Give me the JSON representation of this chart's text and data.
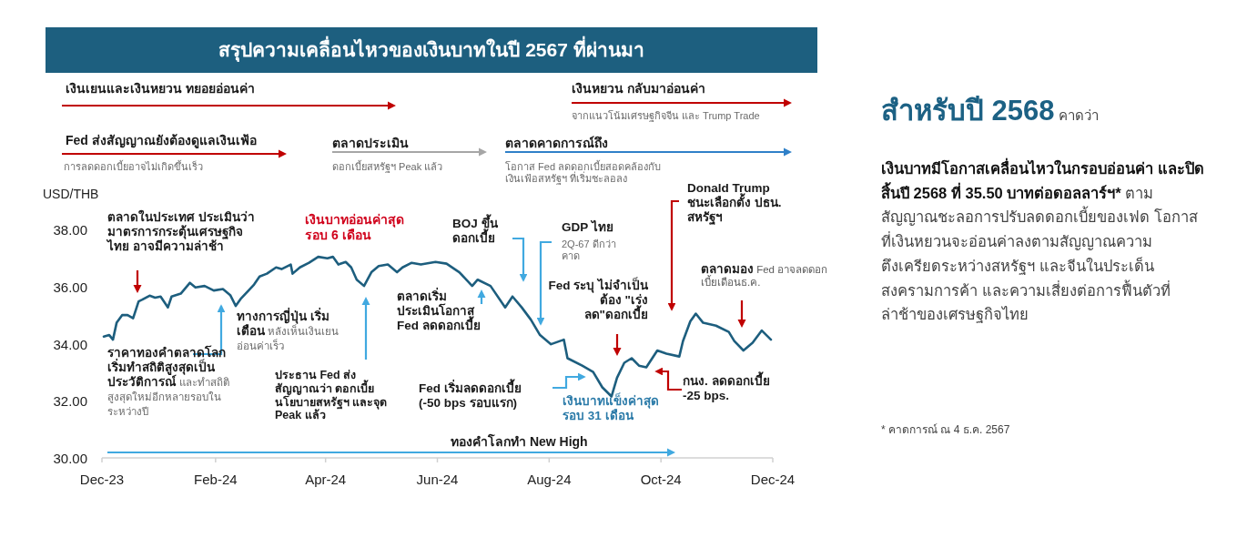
{
  "chart_data": {
    "type": "line",
    "title": "สรุปความเคลื่อนไหวของเงินบาทในปี 2567 ที่ผ่านมา",
    "ylabel": "USD/THB",
    "xlim": [
      "2023-12-01",
      "2024-12-01"
    ],
    "xticks": [
      {
        "value": "2023-12-01",
        "label": "Dec-23"
      },
      {
        "value": "2024-02-01",
        "label": "Feb-24"
      },
      {
        "value": "2024-04-01",
        "label": "Apr-24"
      },
      {
        "value": "2024-06-01",
        "label": "Jun-24"
      },
      {
        "value": "2024-08-01",
        "label": "Aug-24"
      },
      {
        "value": "2024-10-01",
        "label": "Oct-24"
      },
      {
        "value": "2024-12-01",
        "label": "Dec-24"
      }
    ],
    "ylim": [
      30,
      38
    ],
    "yticks": [
      {
        "value": 30,
        "label": "30.00"
      },
      {
        "value": 32,
        "label": "32.00"
      },
      {
        "value": 34,
        "label": "34.00"
      },
      {
        "value": 36,
        "label": "36.00"
      },
      {
        "value": 38,
        "label": "38.00"
      }
    ],
    "x": [
      "2023-12-02",
      "2023-12-05",
      "2023-12-07",
      "2023-12-09",
      "2023-12-12",
      "2023-12-15",
      "2023-12-18",
      "2023-12-21",
      "2023-12-23",
      "2023-12-27",
      "2023-12-30",
      "2024-01-02",
      "2024-01-06",
      "2024-01-08",
      "2024-01-13",
      "2024-01-18",
      "2024-01-21",
      "2024-01-26",
      "2024-01-31",
      "2024-02-05",
      "2024-02-09",
      "2024-02-12",
      "2024-02-15",
      "2024-02-19",
      "2024-02-22",
      "2024-02-25",
      "2024-02-29",
      "2024-03-05",
      "2024-03-08",
      "2024-03-13",
      "2024-03-14",
      "2024-03-18",
      "2024-03-23",
      "2024-03-28",
      "2024-04-02",
      "2024-04-05",
      "2024-04-08",
      "2024-04-12",
      "2024-04-15",
      "2024-04-18",
      "2024-04-22",
      "2024-04-26",
      "2024-04-30",
      "2024-05-05",
      "2024-05-10",
      "2024-05-13",
      "2024-05-18",
      "2024-05-23",
      "2024-05-31",
      "2024-06-06",
      "2024-06-13",
      "2024-06-20",
      "2024-06-23",
      "2024-06-30",
      "2024-07-08",
      "2024-07-12",
      "2024-07-17",
      "2024-07-22",
      "2024-07-27",
      "2024-08-02",
      "2024-08-09",
      "2024-08-11",
      "2024-08-19",
      "2024-08-25",
      "2024-08-30",
      "2024-09-04",
      "2024-09-07",
      "2024-09-11",
      "2024-09-15",
      "2024-09-19",
      "2024-09-23",
      "2024-09-29",
      "2024-10-04",
      "2024-10-11",
      "2024-10-13",
      "2024-10-17",
      "2024-10-20",
      "2024-10-24",
      "2024-10-31",
      "2024-11-07",
      "2024-11-10",
      "2024-11-15",
      "2024-11-20",
      "2024-11-25",
      "2024-11-30"
    ],
    "series": [
      {
        "color": "#1d5e7e",
        "values": [
          34.25,
          34.3,
          34.14,
          34.73,
          35.0,
          35.0,
          34.89,
          35.48,
          35.54,
          35.68,
          35.61,
          35.65,
          35.27,
          35.65,
          35.75,
          36.13,
          35.97,
          36.02,
          35.86,
          35.91,
          35.7,
          35.32,
          35.59,
          35.86,
          36.07,
          36.35,
          36.45,
          36.67,
          36.61,
          36.77,
          36.45,
          36.67,
          36.83,
          37.04,
          36.99,
          37.04,
          36.77,
          36.86,
          36.67,
          36.24,
          36.02,
          36.5,
          36.72,
          36.77,
          36.5,
          36.67,
          36.83,
          36.77,
          36.86,
          36.8,
          36.5,
          36.02,
          36.24,
          36.02,
          35.27,
          35.65,
          35.27,
          34.84,
          34.3,
          33.98,
          34.14,
          33.49,
          33.23,
          33.01,
          32.47,
          32.15,
          32.8,
          33.33,
          33.49,
          33.23,
          33.17,
          33.76,
          33.65,
          33.55,
          34.09,
          34.78,
          35.05,
          34.73,
          34.63,
          34.41,
          34.09,
          33.76,
          34.03,
          34.46,
          34.14
        ]
      }
    ],
    "annotations": [
      "เงินเยนและเงินหยวน ทยอยอ่อนค่า",
      "เงินหยวน กลับมาอ่อนค่า",
      "จากแนวโน้มเศรษฐกิจจีน และ Trump Trade",
      "Fed ส่งสัญญาณยังต้องดูแลเงินเฟ้อ",
      "การลดดอกเบี้ยอาจไม่เกิดขึ้นเร็ว",
      "ตลาดประเมิน",
      "ดอกเบี้ยสหรัฐฯ Peak แล้ว",
      "ตลาดคาดการณ์ถึง",
      "โอกาส Fed ลดดอกเบี้ยสอดคล้องกับเงินเฟ้อสหรัฐฯ ที่เริ่มชะลอลง",
      "ตลาดในประเทศ ประเมินว่า มาตรการกระตุ้นเศรษฐกิจ ไทย อาจมีความล่าช้า",
      "เงินบาทอ่อนค่าสุดรอบ 6 เดือน",
      "**ราคาทองคำตลาดโลกเริ่มทำสถิติสูงสุดเป็นประวัติการณ์** และทำสถิติสูงสุดใหม่อีกหลายรอบในระหว่างปี",
      "**ทางการญี่ปุ่น เริ่มเตือน** หลังเห็นเงินเยนอ่อนค่าเร็ว",
      "ประธาน Fed ส่งสัญญาณว่า ดอกเบี้ยนโยบายสหรัฐฯ และจุด Peak แล้ว",
      "ตลาดเริ่มประเมินโอกาส Fed ลดดอกเบี้ย",
      "BOJ ขึ้นดอกเบี้ย",
      "GDP ไทย",
      "2Q-67 ดีกว่าคาด",
      "Fed ระบุ ไม่จำเป็นต้อง \"เร่งลด\"ดอกเบี้ย",
      "Fed เริ่มลดดอกเบี้ย (-50 bps รอบแรก)",
      "เงินบาทแข็งค่าสุดรอบ 31 เดือน",
      "กนง. ลดดอกเบี้ย -25 bps.",
      "Donald Trump ชนะเลือกตั้ง ปธน. สหรัฐฯ",
      "**ตลาดมอง** Fed อาจลดดอกเบี้ยเดือนธ.ค.",
      "ทองคำโลกทำ New High",
      "สำหรับปี 2568",
      "คาดว่า",
      "เงินบาทมีโอกาสเคลื่อนไหวในกรอบอ่อนค่า และปิดสิ้นปี 2568 ที่ 35.50 บาทต่อดอลลาร์ฯ*",
      "ตามสัญญาณชะลอการปรับลดดอกเบี้ยของเฟด โอกาสที่เงินหยวนจะอ่อนค่าลงตามสัญญาณความตึงเครียดระหว่างสหรัฐฯ และจีนในประเด็นสงครามการค้า และความเสี่ยงต่อการฟื้นตัวที่ล่าช้าของเศรษฐกิจไทย",
      "* คาดการณ์ ณ 4 ธ.ค. 2567"
    ]
  }
}
